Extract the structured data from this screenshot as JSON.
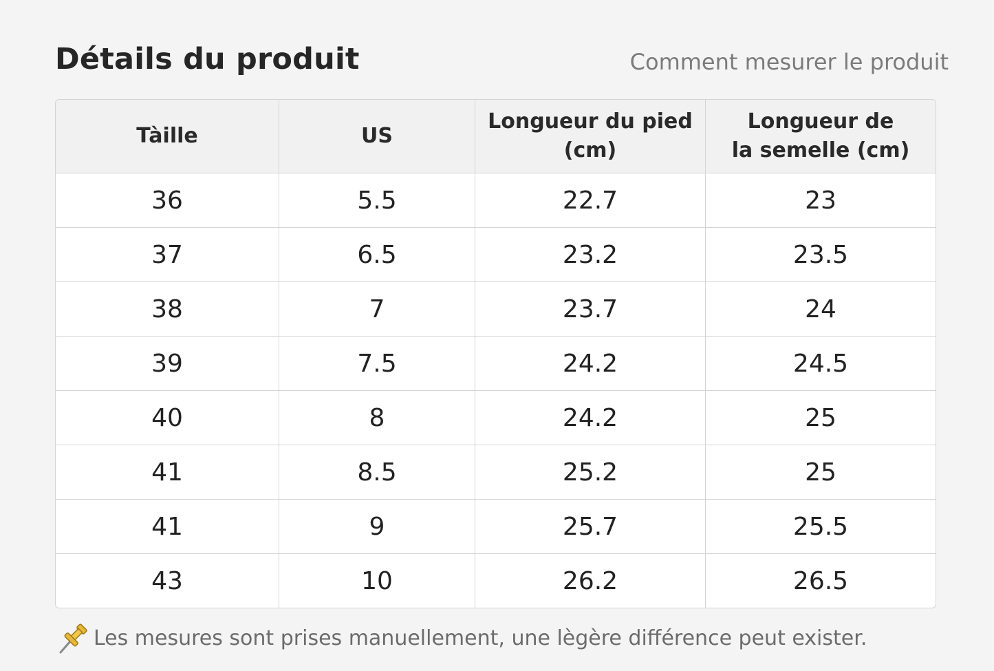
{
  "header": {
    "title": "Détails du produit",
    "measure_link": "Comment mesurer le produit"
  },
  "table": {
    "headers": [
      "Tàille",
      "US",
      "Longueur du pied (cm)",
      "Longueur de la semelle (cm)"
    ],
    "header_lines": [
      [
        "Tàille"
      ],
      [
        "US"
      ],
      [
        "Longueur du pied",
        "(cm)"
      ],
      [
        "Longueur de",
        "la semelle (cm)"
      ]
    ],
    "rows": [
      [
        "36",
        "5.5",
        "22.7",
        "23"
      ],
      [
        "37",
        "6.5",
        "23.2",
        "23.5"
      ],
      [
        "38",
        "7",
        "23.7",
        "24"
      ],
      [
        "39",
        "7.5",
        "24.2",
        "24.5"
      ],
      [
        "40",
        "8",
        "24.2",
        "25"
      ],
      [
        "41",
        "8.5",
        "25.2",
        "25"
      ],
      [
        "41",
        "9",
        "25.7",
        "25.5"
      ],
      [
        "43",
        "10",
        "26.2",
        "26.5"
      ]
    ]
  },
  "note": {
    "icon": "pushpin-icon",
    "text": "Les mesures sont prises manuellement, une lègère différence peut exister."
  }
}
